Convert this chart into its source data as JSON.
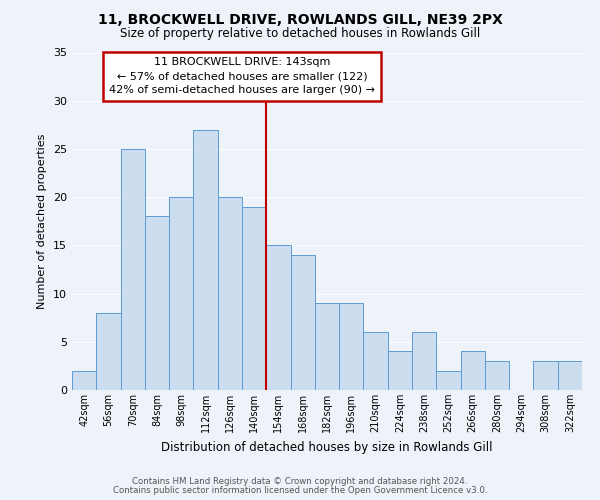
{
  "title": "11, BROCKWELL DRIVE, ROWLANDS GILL, NE39 2PX",
  "subtitle": "Size of property relative to detached houses in Rowlands Gill",
  "xlabel": "Distribution of detached houses by size in Rowlands Gill",
  "ylabel": "Number of detached properties",
  "bar_labels": [
    "42sqm",
    "56sqm",
    "70sqm",
    "84sqm",
    "98sqm",
    "112sqm",
    "126sqm",
    "140sqm",
    "154sqm",
    "168sqm",
    "182sqm",
    "196sqm",
    "210sqm",
    "224sqm",
    "238sqm",
    "252sqm",
    "266sqm",
    "280sqm",
    "294sqm",
    "308sqm",
    "322sqm"
  ],
  "bar_values": [
    2,
    8,
    25,
    18,
    20,
    27,
    20,
    19,
    15,
    14,
    9,
    9,
    6,
    4,
    6,
    2,
    4,
    3,
    0,
    3,
    3
  ],
  "bar_color": "#cdddf0",
  "bar_edge_color": "#5b9bd5",
  "highlight_line_color": "#c00000",
  "annotation_text": "11 BROCKWELL DRIVE: 143sqm\n← 57% of detached houses are smaller (122)\n42% of semi-detached houses are larger (90) →",
  "annotation_box_color": "#ffffff",
  "annotation_box_edge_color": "#c00000",
  "ylim": [
    0,
    35
  ],
  "yticks": [
    0,
    5,
    10,
    15,
    20,
    25,
    30,
    35
  ],
  "footer_line1": "Contains HM Land Registry data © Crown copyright and database right 2024.",
  "footer_line2": "Contains public sector information licensed under the Open Government Licence v3.0.",
  "bg_color": "#eef2f9",
  "grid_color": "#ffffff",
  "highlight_bar_index": 7
}
